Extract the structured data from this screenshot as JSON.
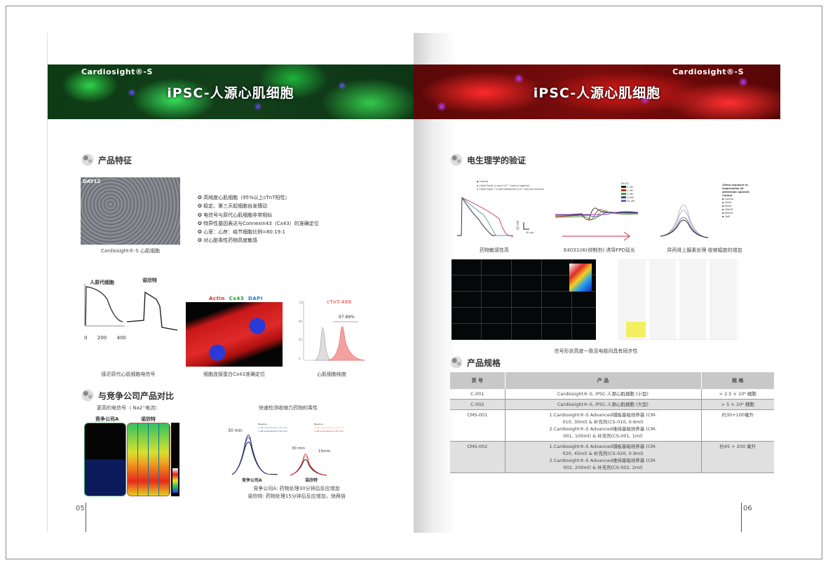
{
  "left": {
    "brand": "Cardiosight®-S",
    "title": "iPSC-人源心肌细胞",
    "features_heading": "产品特征",
    "day_label": "DAY12",
    "photo_caption": "Cardiosight®-S 心肌细胞",
    "features": [
      "高纯度心肌细胞（95%以上cTnT阳性）",
      "稳定、第三天起细胞自发搏动",
      "电信号与原代心肌细胞非常相似",
      "特异性基因表达与Connexin43（Cx43）的准确定位",
      "心室：心房：结节细胞比例=80:19:1",
      "对心脏毒性药物高度敏感"
    ],
    "ap_chart": {
      "label_primary": "人原代细胞",
      "label_product": "诺欣特",
      "x_ticks": [
        "0",
        "200",
        "400"
      ],
      "caption": "接近原代心肌细胞电信号"
    },
    "stain": {
      "actin": "Actin",
      "cx43": "Cx43",
      "dapi": "DAPI",
      "caption": "细胞连接蛋白Cx43准确定位"
    },
    "flow": {
      "title": "cTnT-488",
      "value": "97.89%",
      "y_ticks": [
        "100",
        "80",
        "40",
        "0"
      ],
      "caption": "心肌细胞纯度"
    },
    "compare_heading": "与竞争公司产品对比",
    "na_title": "更高的电信号（ Na2⁺电流）",
    "comp_a": "竞争公司A",
    "product": "诺欣特",
    "tox_title": "快速检测收缩力药物的毒性",
    "tox_30a": "30 min",
    "tox_30b": "30 min",
    "tox_15": "15min",
    "legend_a": [
      "Baseline",
      "1 μM Isoproterenol (15 min)",
      "1 μM Isoproterenol (30 min)"
    ],
    "legend_b": [
      "Baseline",
      "1 μM Isoproterenol (15 min)",
      "1 μM Isoproterenol (30 min)"
    ],
    "tox_note1": "竞争公司A: 药物处理30分钟后反应增加",
    "tox_note2": "诺欣特: 药物处理15分钟后反应增加，快两倍",
    "page": "05"
  },
  "right": {
    "brand": "Cardiosight®-S",
    "title": "iPSC-人源心肌细胞",
    "ephys_heading": "电生理学的验证",
    "c1": {
      "legend": [
        "Control",
        "10μM BayK (L-type Ca²⁺ channel agonist)",
        "10μM BayK +10μM Nifedipine (Ca²⁺ channel blocker)"
      ],
      "scale_v": "20 mV",
      "scale_t": "50 mV",
      "caption": "药物敏感性高"
    },
    "c2": {
      "legend_title": "E4031",
      "legend": [
        "0 nM",
        "1 nM",
        "3 nM",
        "10nM",
        "30 nM"
      ],
      "caption": "E4031(IKr抑制剂) 诱导FPD延长"
    },
    "c3": {
      "legend_title": "15min exposure to Isoprenaline (β-adrenergic agonist) Control",
      "legend": [
        "Control",
        "30nM",
        "60nM",
        "300nM",
        "600nM",
        "1μM"
      ],
      "scale": "100ms",
      "caption": "异丙肾上腺素处理 收缩幅度的增加"
    },
    "mea_caption": "信号形状高度一致且电极间具有同步性",
    "spec_heading": "产品规格",
    "table": {
      "headers": [
        "货 号",
        "产 品",
        "规 格"
      ],
      "rows": [
        {
          "id": "C-001",
          "product": "Cardiosight®-S, iPSC-人源心肌细胞 (小型)",
          "spec": "> 2.5 × 10⁶ 细胞"
        },
        {
          "id": "C-002",
          "product": "Cardiosight®-S, iPSC-人源心肌细胞 (大型)",
          "spec": "> 5 × 10⁶ 细胞"
        },
        {
          "id": "CMS-001",
          "product": "1.Cardiosight®-S Advanced铺板基础培养基 (CM-010, 30ml) & 补充剂(CS-010, 0.6ml) 2.Cardiosight®-S Advanced维持基础培养基 (CM-001, 100ml) & 补充剂(CS-001, 1ml)",
          "spec": "约30+100毫升"
        },
        {
          "id": "CMS-002",
          "product": "1.Cardiosight®-S Advanced铺板基础培养基 (CM-020, 45ml) & 补充剂(CS-020, 0.9ml) 2.Cardiosight®-S Advanced维持基础培养基 (CM-002, 200ml) & 补充剂(CS-002, 2ml)",
          "spec": "约45 + 200 毫升"
        }
      ]
    },
    "page": "06"
  },
  "colors": {
    "actin": "#e02020",
    "cx43": "#1a9a2a",
    "dapi": "#1a7ad0",
    "flow": "#f08080",
    "arrow": "#c0304a"
  }
}
